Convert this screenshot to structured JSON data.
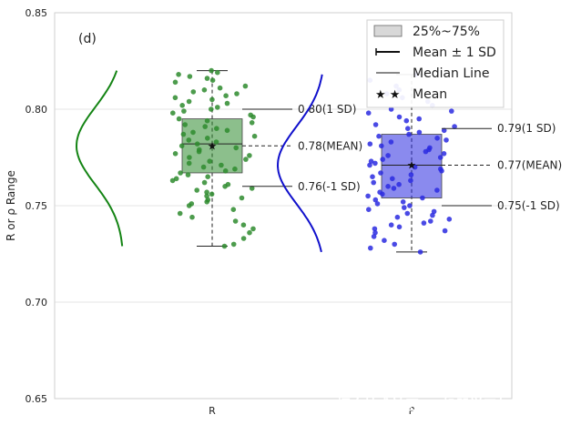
{
  "chart_data": {
    "type": "box",
    "panel_label": "(d)",
    "ylabel": "R or ρ Range",
    "ylim": [
      0.65,
      0.85
    ],
    "yticks": [
      "0.65",
      "0.70",
      "0.75",
      "0.80",
      "0.85"
    ],
    "categories": [
      "R",
      "P"
    ],
    "legend": {
      "position": "top-right",
      "items": [
        "25%~75%",
        "Mean ± 1 SD",
        "Median Line",
        "Mean"
      ]
    },
    "groups": [
      {
        "category": "R",
        "color": "#2e8b2e",
        "q1": 0.767,
        "q3": 0.795,
        "median": 0.782,
        "mean": 0.781,
        "sd_upper": 0.8,
        "sd_lower": 0.76,
        "whisker_min": 0.729,
        "whisker_max": 0.82,
        "labels": {
          "upper": "0.80(1 SD)",
          "mean": "0.78(MEAN)",
          "lower": "0.76(-1 SD)"
        },
        "points": [
          0.82,
          0.819,
          0.818,
          0.817,
          0.816,
          0.815,
          0.814,
          0.812,
          0.811,
          0.81,
          0.809,
          0.808,
          0.807,
          0.806,
          0.805,
          0.804,
          0.803,
          0.802,
          0.801,
          0.8,
          0.799,
          0.798,
          0.797,
          0.796,
          0.795,
          0.794,
          0.793,
          0.792,
          0.791,
          0.79,
          0.789,
          0.788,
          0.787,
          0.786,
          0.785,
          0.784,
          0.783,
          0.782,
          0.781,
          0.78,
          0.779,
          0.778,
          0.777,
          0.776,
          0.775,
          0.774,
          0.773,
          0.772,
          0.771,
          0.77,
          0.769,
          0.768,
          0.767,
          0.766,
          0.765,
          0.764,
          0.763,
          0.762,
          0.761,
          0.76,
          0.759,
          0.758,
          0.757,
          0.756,
          0.755,
          0.754,
          0.753,
          0.752,
          0.751,
          0.75,
          0.748,
          0.746,
          0.744,
          0.742,
          0.74,
          0.738,
          0.736,
          0.733,
          0.73,
          0.729
        ]
      },
      {
        "category": "P",
        "color": "#2a2ae0",
        "q1": 0.754,
        "q3": 0.787,
        "median": 0.771,
        "mean": 0.771,
        "sd_upper": 0.79,
        "sd_lower": 0.75,
        "whisker_min": 0.726,
        "whisker_max": 0.818,
        "labels": {
          "upper": "0.79(1 SD)",
          "mean": "0.77(MEAN)",
          "lower": "0.75(-1 SD)"
        },
        "points": [
          0.818,
          0.815,
          0.812,
          0.81,
          0.808,
          0.806,
          0.804,
          0.802,
          0.8,
          0.799,
          0.798,
          0.796,
          0.795,
          0.794,
          0.792,
          0.791,
          0.79,
          0.789,
          0.788,
          0.787,
          0.786,
          0.785,
          0.784,
          0.783,
          0.782,
          0.781,
          0.78,
          0.779,
          0.778,
          0.777,
          0.776,
          0.775,
          0.774,
          0.773,
          0.772,
          0.771,
          0.77,
          0.769,
          0.768,
          0.767,
          0.766,
          0.765,
          0.764,
          0.763,
          0.762,
          0.761,
          0.76,
          0.759,
          0.758,
          0.757,
          0.756,
          0.755,
          0.754,
          0.753,
          0.752,
          0.751,
          0.75,
          0.749,
          0.748,
          0.747,
          0.746,
          0.745,
          0.744,
          0.743,
          0.742,
          0.741,
          0.74,
          0.739,
          0.738,
          0.737,
          0.736,
          0.734,
          0.732,
          0.73,
          0.728,
          0.726
        ]
      }
    ]
  },
  "watermark": "掘金技术社区 @ 机器学习与统计学"
}
